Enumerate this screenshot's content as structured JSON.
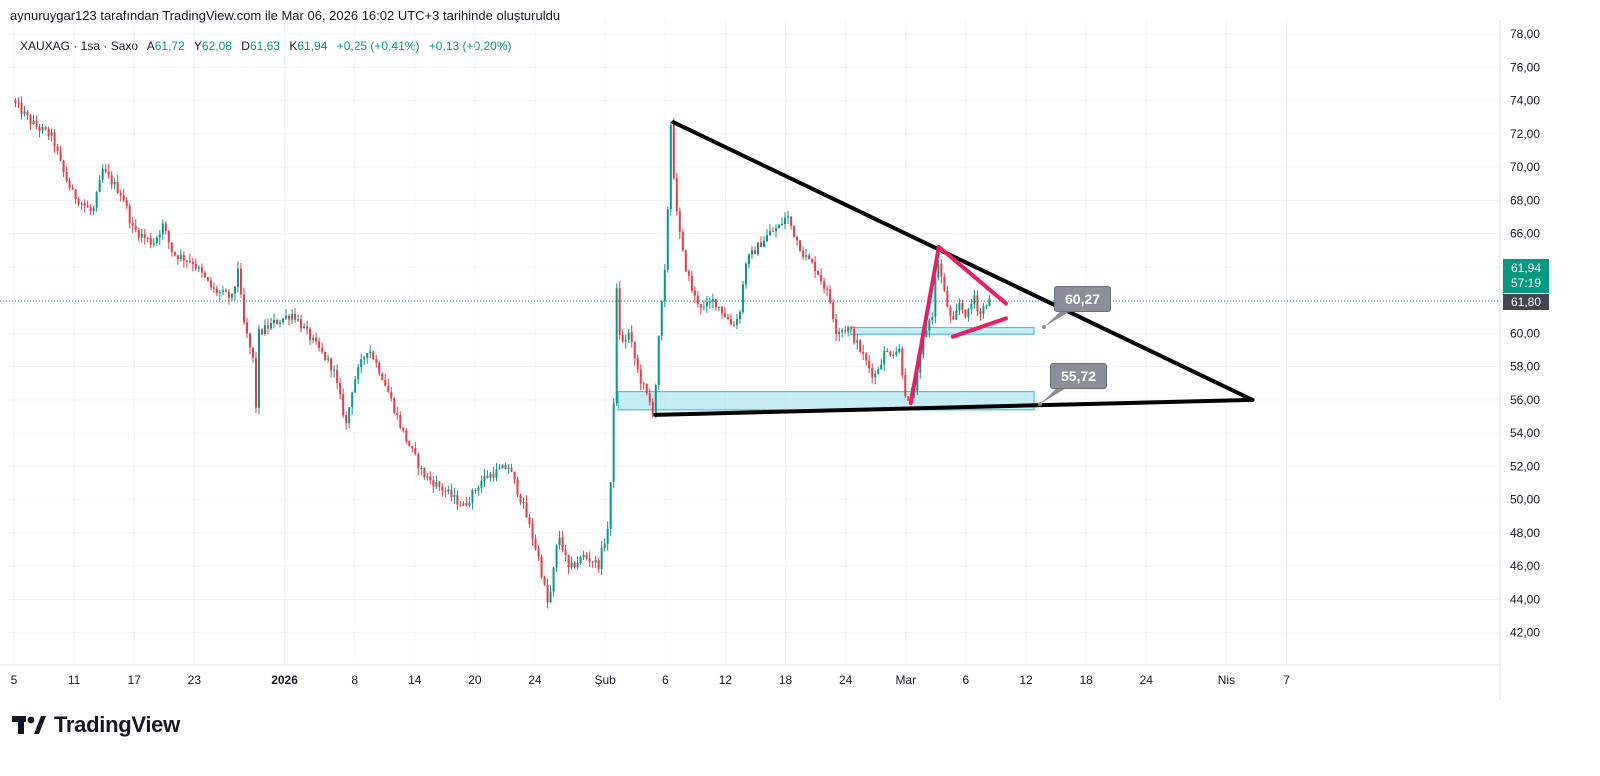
{
  "header": {
    "credit": "aynuruygar123 tarafından TradingView.com ile Mar 06, 2026 16:02 UTC+3 tarihinde oluşturuldu"
  },
  "legend": {
    "symbol": "XAUXAG · 1sa · Saxo",
    "open_label": "A",
    "open_value": "61,72",
    "high_label": "Y",
    "high_value": "62,08",
    "low_label": "D",
    "low_value": "61,63",
    "close_label": "K",
    "close_value": "61,94",
    "change": "+0,25 (+0,41%)",
    "change2": "+0,13 (+0,20%)"
  },
  "price_badges": {
    "last_price": "61,94",
    "countdown": "57:19",
    "other_price": "61,80"
  },
  "callouts": {
    "upper_level": "60,27",
    "lower_level": "55,72"
  },
  "brand": {
    "name": "TradingView"
  },
  "colors": {
    "up": "#089981",
    "down": "#f23645",
    "trendline": "#000000",
    "pennant": "#e91e63",
    "zone_fill": "#a7e3ec",
    "zone_stroke": "#4fc3d7"
  },
  "chart_data": {
    "type": "candlestick",
    "symbol": "XAUXAG",
    "interval": "1sa",
    "ylim": [
      41,
      78
    ],
    "y_ticks": [
      "78,00",
      "76,00",
      "74,00",
      "72,00",
      "70,00",
      "68,00",
      "66,00",
      "64,00",
      "62,00",
      "60,00",
      "58,00",
      "56,00",
      "54,00",
      "52,00",
      "50,00",
      "48,00",
      "46,00",
      "44,00",
      "42,00"
    ],
    "x_ticks": [
      {
        "label": "5",
        "day": 0
      },
      {
        "label": "11",
        "day": 6
      },
      {
        "label": "17",
        "day": 12
      },
      {
        "label": "23",
        "day": 18
      },
      {
        "label": "2026",
        "day": 27,
        "bold": true
      },
      {
        "label": "8",
        "day": 34
      },
      {
        "label": "14",
        "day": 40
      },
      {
        "label": "20",
        "day": 46
      },
      {
        "label": "24",
        "day": 52
      },
      {
        "label": "Şub",
        "day": 59
      },
      {
        "label": "6",
        "day": 65
      },
      {
        "label": "12",
        "day": 71
      },
      {
        "label": "18",
        "day": 77
      },
      {
        "label": "24",
        "day": 83
      },
      {
        "label": "Mar",
        "day": 89
      },
      {
        "label": "6",
        "day": 95
      },
      {
        "label": "12",
        "day": 101
      },
      {
        "label": "18",
        "day": 107
      },
      {
        "label": "24",
        "day": 113
      },
      {
        "label": "Nis",
        "day": 121
      },
      {
        "label": "7",
        "day": 127
      }
    ],
    "price_path": [
      [
        0,
        74.0
      ],
      [
        2,
        72.6
      ],
      [
        4,
        71.8
      ],
      [
        5,
        69.8
      ],
      [
        6,
        68.4
      ],
      [
        8,
        67.2
      ],
      [
        9,
        69.8
      ],
      [
        11,
        68.3
      ],
      [
        12,
        66.3
      ],
      [
        14,
        65.4
      ],
      [
        15,
        66.5
      ],
      [
        16,
        64.8
      ],
      [
        18,
        64.3
      ],
      [
        20,
        62.6
      ],
      [
        22,
        62.1
      ],
      [
        22.5,
        64.0
      ],
      [
        23,
        60.8
      ],
      [
        24,
        58.4
      ],
      [
        24.2,
        54.2
      ],
      [
        24.6,
        60.0
      ],
      [
        26,
        60.6
      ],
      [
        28,
        61.2
      ],
      [
        30,
        59.5
      ],
      [
        32,
        57.9
      ],
      [
        33.3,
        54.5
      ],
      [
        34,
        57.0
      ],
      [
        35.5,
        59.2
      ],
      [
        37,
        57.3
      ],
      [
        39,
        54.0
      ],
      [
        41,
        51.5
      ],
      [
        43,
        50.6
      ],
      [
        45,
        49.6
      ],
      [
        47,
        51.3
      ],
      [
        49.5,
        52.0
      ],
      [
        51,
        49.6
      ],
      [
        52.5,
        46.5
      ],
      [
        53.5,
        43.5
      ],
      [
        54.5,
        48.0
      ],
      [
        55.5,
        45.8
      ],
      [
        57,
        46.6
      ],
      [
        58.5,
        46.1
      ],
      [
        59.5,
        48.5
      ],
      [
        59.8,
        52.0
      ],
      [
        60,
        56.0
      ],
      [
        60.3,
        62.5
      ],
      [
        60.7,
        59.2
      ],
      [
        61.5,
        60.0
      ],
      [
        62.5,
        57.5
      ],
      [
        64,
        55.2
      ],
      [
        64.6,
        60.5
      ],
      [
        65.2,
        64.2
      ],
      [
        65.7,
        72.6
      ],
      [
        66.2,
        67.5
      ],
      [
        67,
        64.4
      ],
      [
        68,
        62.2
      ],
      [
        69,
        61.5
      ],
      [
        70,
        62.0
      ],
      [
        71,
        61.2
      ],
      [
        71.8,
        60.5
      ],
      [
        72.5,
        61.0
      ],
      [
        73.2,
        64.3
      ],
      [
        74.5,
        65.3
      ],
      [
        75.5,
        66.0
      ],
      [
        76.5,
        66.4
      ],
      [
        77.3,
        67.1
      ],
      [
        78,
        66.0
      ],
      [
        79,
        64.7
      ],
      [
        80.2,
        63.9
      ],
      [
        81.5,
        62.2
      ],
      [
        82.2,
        60.2
      ],
      [
        83.5,
        60.3
      ],
      [
        85,
        58.5
      ],
      [
        86,
        57.4
      ],
      [
        87,
        58.8
      ],
      [
        88.5,
        59.0
      ],
      [
        89.3,
        55.6
      ],
      [
        90.2,
        57.0
      ],
      [
        91,
        60.0
      ],
      [
        91.8,
        61.2
      ],
      [
        92.3,
        64.6
      ],
      [
        93,
        62.4
      ],
      [
        93.8,
        60.4
      ],
      [
        94.5,
        61.8
      ],
      [
        95.3,
        61.0
      ],
      [
        96,
        62.3
      ],
      [
        96.5,
        61.1
      ],
      [
        97.2,
        61.9
      ]
    ],
    "drawings": {
      "upper_trendline": {
        "from": [
          65.8,
          72.7
        ],
        "to": [
          123.6,
          56.0
        ]
      },
      "lower_trendline": {
        "from": [
          64.0,
          55.1
        ],
        "to": [
          123.6,
          56.0
        ]
      },
      "pennant_lines": [
        {
          "from": [
            89.5,
            55.8
          ],
          "to": [
            92.3,
            65.2
          ]
        },
        {
          "from": [
            92.3,
            65.2
          ],
          "to": [
            99.0,
            61.8
          ]
        },
        {
          "from": [
            93.7,
            59.8
          ],
          "to": [
            99.0,
            60.9
          ]
        }
      ],
      "zones": [
        {
          "x_from": 83.5,
          "x_to": 101.8,
          "y_from": 59.95,
          "y_to": 60.35
        },
        {
          "x_from": 60.3,
          "x_to": 101.8,
          "y_from": 55.4,
          "y_to": 56.5
        }
      ],
      "price_line": 61.94
    }
  }
}
